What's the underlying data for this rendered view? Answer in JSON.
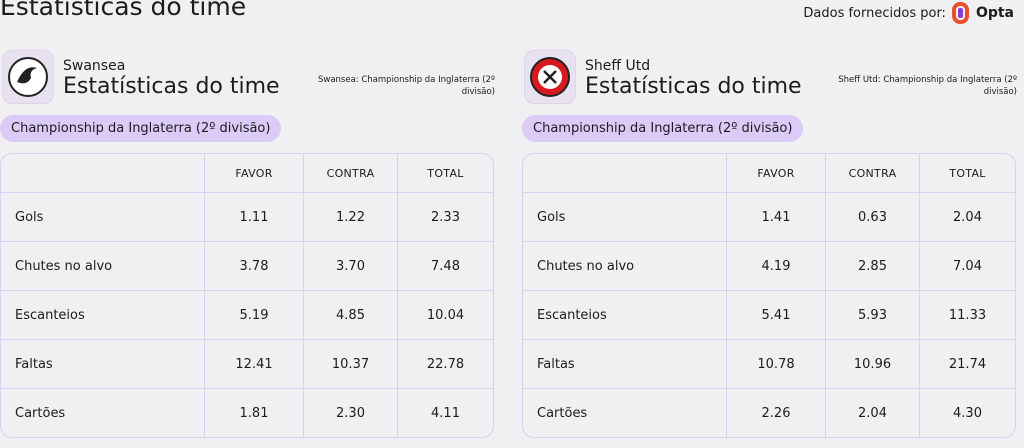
{
  "header": {
    "title": "Estatísticas do time",
    "provider_label": "Dados fornecidos por:",
    "provider": "Opta"
  },
  "panels": [
    {
      "team": "Swansea",
      "title": "Estatísticas do time",
      "note": "Swansea: Championship da Inglaterra (2º divisão)",
      "competition": "Championship da Inglaterra (2º divisão)",
      "table": {
        "columns": [
          "FAVOR",
          "CONTRA",
          "TOTAL"
        ],
        "rows": [
          [
            "Gols",
            "1.11",
            "1.22",
            "2.33"
          ],
          [
            "Chutes no alvo",
            "3.78",
            "3.70",
            "7.48"
          ],
          [
            "Escanteios",
            "5.19",
            "4.85",
            "10.04"
          ],
          [
            "Faltas",
            "12.41",
            "10.37",
            "22.78"
          ],
          [
            "Cartões",
            "1.81",
            "2.30",
            "4.11"
          ]
        ]
      }
    },
    {
      "team": "Sheff Utd",
      "title": "Estatísticas do time",
      "note": "Sheff Utd: Championship da Inglaterra (2º divisão)",
      "competition": "Championship da Inglaterra (2º divisão)",
      "table": {
        "columns": [
          "FAVOR",
          "CONTRA",
          "TOTAL"
        ],
        "rows": [
          [
            "Gols",
            "1.41",
            "0.63",
            "2.04"
          ],
          [
            "Chutes no alvo",
            "4.19",
            "2.85",
            "7.04"
          ],
          [
            "Escanteios",
            "5.41",
            "5.93",
            "11.33"
          ],
          [
            "Faltas",
            "10.78",
            "10.96",
            "21.74"
          ],
          [
            "Cartões",
            "2.26",
            "2.04",
            "4.30"
          ]
        ]
      }
    }
  ]
}
